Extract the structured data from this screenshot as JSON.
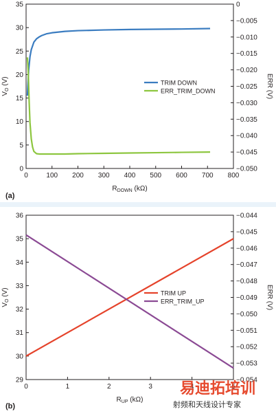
{
  "separator_color": "#eaf3fa",
  "charts": [
    {
      "panel_label": "(a)",
      "x_label_main": "R",
      "x_label_sub": "DOWN",
      "x_label_tail": " (kΩ)",
      "y_left_main": "V",
      "y_left_sub": "O",
      "y_left_tail": " (V)",
      "y_right_label": "ERR (V)",
      "x_ticks": [
        "0",
        "100",
        "200",
        "300",
        "400",
        "500",
        "600",
        "700",
        "800"
      ],
      "y_left_ticks": [
        "0",
        "5",
        "10",
        "15",
        "20",
        "25",
        "30",
        "35"
      ],
      "y_right_ticks": [
        "0",
        "−0.005",
        "−0.010",
        "−0.015",
        "−0.020",
        "−0.025",
        "−0.030",
        "−0.035",
        "−0.040",
        "−0.045",
        "−0.050"
      ],
      "legend": [
        "TRIM DOWN",
        "ERR_TRIM_DOWN"
      ]
    },
    {
      "panel_label": "(b)",
      "x_label_main": "R",
      "x_label_sub": "UP",
      "x_label_tail": " (kΩ)",
      "y_left_main": "V",
      "y_left_sub": "O",
      "y_left_tail": " (V)",
      "y_right_label": "ERR (V)",
      "x_ticks": [
        "0",
        "1",
        "2",
        "3",
        "4",
        "5"
      ],
      "y_left_ticks": [
        "29",
        "30",
        "31",
        "32",
        "33",
        "34",
        "35",
        "36"
      ],
      "y_right_ticks": [
        "−0.044",
        "−0.045",
        "−0.046",
        "−0.047",
        "−0.048",
        "−0.049",
        "−0.050",
        "−0.051",
        "−0.052",
        "−0.053",
        "−0.054"
      ],
      "legend": [
        "TRIM UP",
        "ERR_TRIM_UP"
      ]
    }
  ],
  "watermark": {
    "line1": "易迪拓培训",
    "line2": "射频和天线设计专家"
  },
  "chart_data": [
    {
      "type": "line",
      "x_unit": "kΩ",
      "xlim": [
        0,
        800
      ],
      "ylim": [
        0,
        35
      ],
      "ylim_right": [
        0,
        -0.05
      ],
      "grid": false,
      "legend_position": "right",
      "series": [
        {
          "name": "TRIM DOWN",
          "axis": "left",
          "color": "#3a7cc0",
          "x": [
            5,
            10,
            15,
            20,
            30,
            40,
            50,
            60,
            80,
            100,
            150,
            200,
            300,
            400,
            500,
            600,
            710
          ],
          "y": [
            15.5,
            21.0,
            23.8,
            25.3,
            26.9,
            27.6,
            28.0,
            28.3,
            28.7,
            28.9,
            29.2,
            29.35,
            29.5,
            29.6,
            29.65,
            29.7,
            29.8
          ]
        },
        {
          "name": "ERR_TRIM_DOWN",
          "axis": "right",
          "color": "#8dc63f",
          "x": [
            5,
            8,
            12,
            15,
            20,
            25,
            30,
            40,
            50,
            60,
            80,
            100,
            150,
            200,
            300,
            400,
            500,
            600,
            710
          ],
          "y": [
            -0.0162,
            -0.02,
            -0.03,
            -0.036,
            -0.041,
            -0.0435,
            -0.0448,
            -0.0455,
            -0.0456,
            -0.0456,
            -0.0456,
            -0.0456,
            -0.0456,
            -0.0455,
            -0.0454,
            -0.0453,
            -0.0452,
            -0.0451,
            -0.045
          ]
        }
      ]
    },
    {
      "type": "line",
      "x_unit": "kΩ",
      "xlim": [
        0,
        5
      ],
      "ylim": [
        29,
        36
      ],
      "ylim_right": [
        -0.044,
        -0.054
      ],
      "grid": false,
      "legend_position": "right",
      "series": [
        {
          "name": "TRIM UP",
          "axis": "left",
          "color": "#e5432b",
          "x": [
            0,
            5
          ],
          "y": [
            30.0,
            35.0
          ]
        },
        {
          "name": "ERR_TRIM_UP",
          "axis": "right",
          "color": "#8b4a94",
          "x": [
            0,
            5
          ],
          "y": [
            -0.0452,
            -0.0533
          ]
        }
      ]
    }
  ]
}
